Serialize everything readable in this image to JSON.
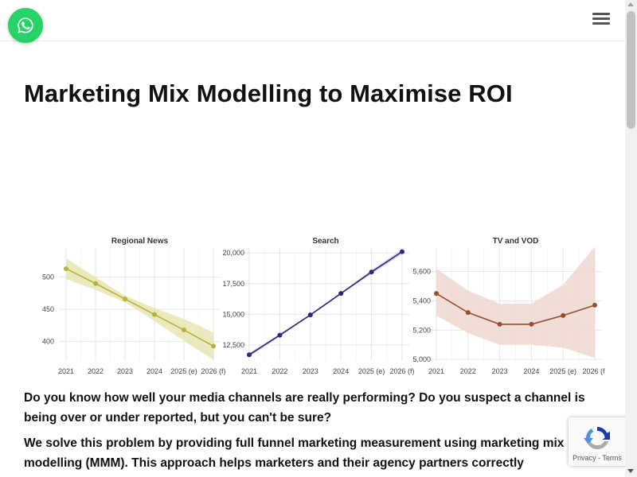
{
  "header": {
    "whatsapp_icon": "whatsapp-icon",
    "menu_icon": "hamburger-menu-icon"
  },
  "page": {
    "title": "Marketing Mix Modelling to Maximise ROI",
    "paragraph1": "Do you know how well your media channels are really performing? Do you suspect a channel is being over or under reported, but you can't be sure?",
    "paragraph2": "We solve this problem by providing full funnel marketing measurement using marketing mix modelling (MMM). This approach helps marketers and their agency partners correctly"
  },
  "recaptcha": {
    "privacy": "Privacy",
    "separator": " - ",
    "terms": "Terms"
  },
  "colors": {
    "whatsapp": "#25d366",
    "regional": "#b8b03a",
    "search": "#2a2a7a",
    "tv": "#9a4e2e"
  },
  "chart_data": [
    {
      "type": "line",
      "title": "Regional News",
      "categories": [
        "2021",
        "2022",
        "2023",
        "2024",
        "2025 (e)",
        "2026 (f)"
      ],
      "values": [
        513,
        490,
        466,
        442,
        418,
        393
      ],
      "band_low": [
        497,
        480,
        461,
        432,
        401,
        372
      ],
      "band_high": [
        529,
        500,
        471,
        452,
        435,
        414
      ],
      "yticks": [
        400,
        450,
        500
      ],
      "ylim": [
        370,
        545
      ],
      "color": "#b8b03a",
      "band_color": "#e8e6b4"
    },
    {
      "type": "line",
      "title": "Search",
      "categories": [
        "2021",
        "2022",
        "2023",
        "2024",
        "2025 (e)",
        "2026 (f)"
      ],
      "values": [
        11700,
        13300,
        14950,
        16700,
        18450,
        20100
      ],
      "band_low": [
        11550,
        13200,
        14880,
        16620,
        18300,
        19900
      ],
      "band_high": [
        11850,
        13400,
        15020,
        16780,
        18600,
        20300
      ],
      "yticks": [
        12500,
        15000,
        17500,
        20000
      ],
      "ylim": [
        11200,
        20400
      ],
      "color": "#2a2a7a",
      "band_color": "#cfcdea"
    },
    {
      "type": "line",
      "title": "TV and VOD",
      "categories": [
        "2021",
        "2022",
        "2023",
        "2024",
        "2025 (e)",
        "2026 (f)"
      ],
      "values": [
        5450,
        5320,
        5240,
        5240,
        5300,
        5370
      ],
      "band_low": [
        5300,
        5180,
        5100,
        5100,
        5080,
        5010
      ],
      "band_high": [
        5620,
        5470,
        5380,
        5380,
        5510,
        5770
      ],
      "yticks": [
        5000,
        5200,
        5400,
        5600
      ],
      "ylim": [
        4990,
        5760
      ],
      "color": "#9a4e2e",
      "band_color": "#eed8d0"
    }
  ]
}
